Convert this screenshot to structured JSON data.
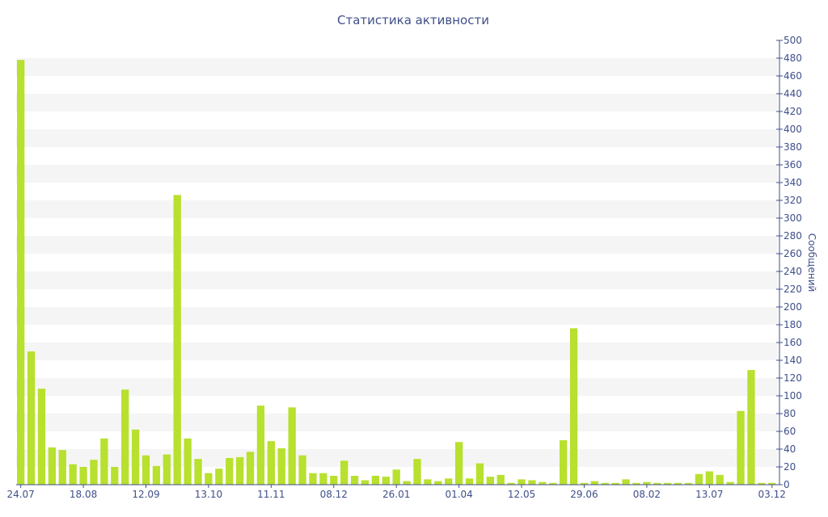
{
  "chart_data": {
    "type": "bar",
    "title": "Статистика активности",
    "xlabel": "",
    "ylabel": "Сообщений",
    "ylim": [
      0,
      500
    ],
    "y_axis_side": "right",
    "y_ticks": [
      0,
      20,
      40,
      60,
      80,
      100,
      120,
      140,
      160,
      180,
      200,
      220,
      240,
      260,
      280,
      300,
      320,
      340,
      360,
      380,
      400,
      420,
      440,
      460,
      480,
      500
    ],
    "x_tick_labels": [
      {
        "index": 0,
        "label": "24.07"
      },
      {
        "index": 6,
        "label": "18.08"
      },
      {
        "index": 12,
        "label": "12.09"
      },
      {
        "index": 18,
        "label": "13.10"
      },
      {
        "index": 24,
        "label": "11.11"
      },
      {
        "index": 30,
        "label": "08.12"
      },
      {
        "index": 36,
        "label": "26.01"
      },
      {
        "index": 42,
        "label": "01.04"
      },
      {
        "index": 48,
        "label": "12.05"
      },
      {
        "index": 54,
        "label": "29.06"
      },
      {
        "index": 60,
        "label": "08.02"
      },
      {
        "index": 66,
        "label": "13.07"
      },
      {
        "index": 72,
        "label": "03.12"
      }
    ],
    "values": [
      478,
      150,
      108,
      42,
      39,
      23,
      20,
      28,
      52,
      20,
      107,
      62,
      33,
      21,
      34,
      326,
      52,
      29,
      13,
      18,
      30,
      31,
      37,
      89,
      49,
      41,
      87,
      33,
      13,
      13,
      10,
      27,
      10,
      5,
      10,
      9,
      17,
      4,
      29,
      6,
      4,
      7,
      48,
      7,
      24,
      9,
      11,
      2,
      6,
      5,
      3,
      2,
      50,
      176,
      2,
      4,
      2,
      2,
      6,
      2,
      3,
      2,
      2,
      2,
      2,
      12,
      15,
      11,
      3,
      83,
      129,
      2,
      2
    ],
    "grid": true,
    "bar_color": "#b8e02e",
    "grid_band_color": "#f5f5f5",
    "text_color": "#3f4f8a"
  }
}
